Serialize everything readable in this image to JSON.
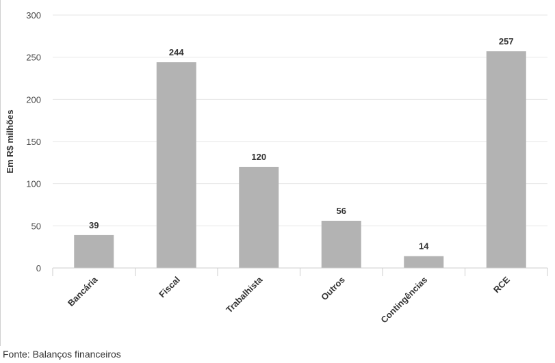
{
  "chart_data": {
    "type": "bar",
    "categories": [
      "Bancária",
      "Fiscal",
      "Trabalhista",
      "Outros",
      "Contingências",
      "RCE"
    ],
    "values": [
      39,
      244,
      120,
      56,
      14,
      257
    ],
    "data_labels": [
      "39",
      "244",
      "120",
      "56",
      "14",
      "257"
    ],
    "ylabel": "Em R$ milhões",
    "xlabel": "",
    "ylim": [
      0,
      300
    ],
    "yticks": [
      0,
      50,
      100,
      150,
      200,
      250,
      300
    ],
    "grid": true,
    "colors": {
      "bar": "#b3b3b3",
      "grid": "#e6e6e6",
      "axis": "#cccccc"
    }
  },
  "source": "Fonte: Balanços financeiros"
}
